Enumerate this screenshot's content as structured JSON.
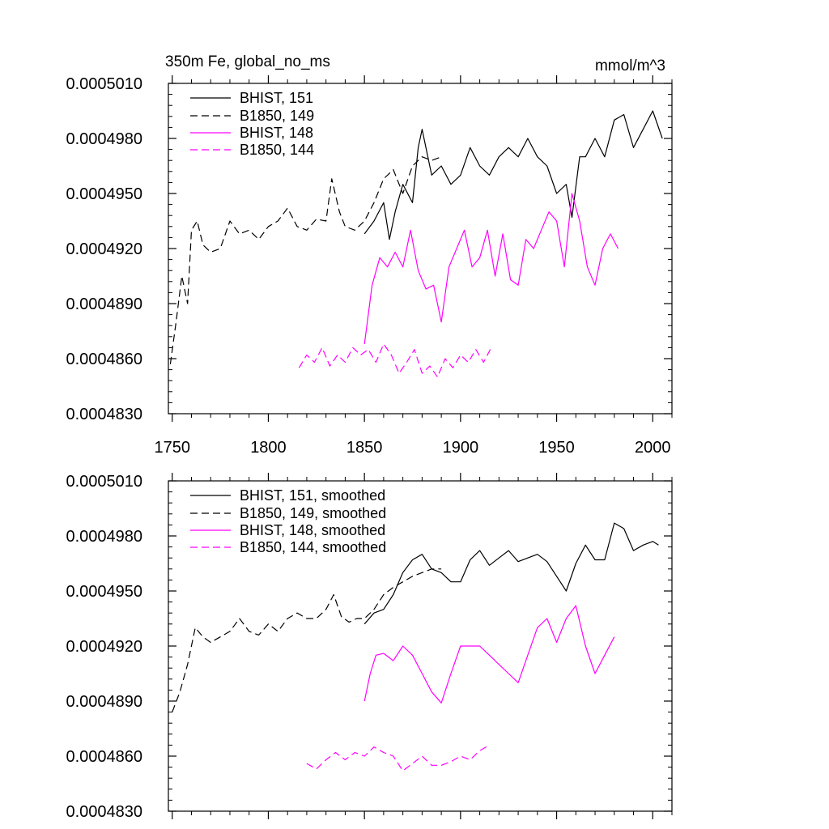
{
  "chart_data": [
    {
      "type": "line",
      "title_left": "350m Fe, global_no_ms",
      "title_right": "mmol/m^3",
      "xlim": [
        1748,
        2010
      ],
      "ylim": [
        0.000483,
        0.000501
      ],
      "ytick_labels": [
        "0.0005010",
        "0.0004980",
        "0.0004950",
        "0.0004920",
        "0.0004890",
        "0.0004860",
        "0.0004830"
      ],
      "ytick_values": [
        0.000501,
        0.000498,
        0.000495,
        0.000492,
        0.000489,
        0.000486,
        0.000483
      ],
      "xtick_labels": [
        "1750",
        "1800",
        "1850",
        "1900",
        "1950",
        "2000"
      ],
      "xtick_values": [
        1750,
        1800,
        1850,
        1900,
        1950,
        2000
      ],
      "grid": false,
      "legend_position": "top-left",
      "series": [
        {
          "name": "BHIST, 151",
          "color": "#000000",
          "dash": "solid",
          "x": [
            1850,
            1855,
            1860,
            1863,
            1866,
            1870,
            1875,
            1878,
            1880,
            1885,
            1890,
            1895,
            1900,
            1905,
            1910,
            1915,
            1920,
            1925,
            1930,
            1935,
            1940,
            1945,
            1950,
            1955,
            1958,
            1962,
            1965,
            1970,
            1975,
            1980,
            1985,
            1990,
            1995,
            2000,
            2005
          ],
          "y": [
            0.0004928,
            0.0004935,
            0.0004945,
            0.0004925,
            0.000494,
            0.0004955,
            0.0004945,
            0.0004975,
            0.0004985,
            0.000496,
            0.0004965,
            0.0004955,
            0.000496,
            0.0004975,
            0.0004965,
            0.000496,
            0.000497,
            0.0004975,
            0.000497,
            0.000498,
            0.000497,
            0.0004965,
            0.000495,
            0.0004955,
            0.0004937,
            0.000497,
            0.000497,
            0.000498,
            0.000497,
            0.000499,
            0.0004993,
            0.0004975,
            0.0004985,
            0.0004995,
            0.000498
          ]
        },
        {
          "name": "B1850, 149",
          "color": "#000000",
          "dash": "dashed",
          "x": [
            1749,
            1752,
            1755,
            1758,
            1760,
            1763,
            1766,
            1770,
            1775,
            1780,
            1785,
            1790,
            1795,
            1800,
            1805,
            1810,
            1815,
            1820,
            1825,
            1830,
            1833,
            1837,
            1840,
            1845,
            1850,
            1855,
            1860,
            1865,
            1870,
            1875,
            1880,
            1885,
            1890
          ],
          "y": [
            0.0004857,
            0.000488,
            0.0004905,
            0.000489,
            0.000493,
            0.0004935,
            0.0004922,
            0.0004918,
            0.000492,
            0.0004935,
            0.0004928,
            0.000493,
            0.0004925,
            0.0004932,
            0.0004935,
            0.0004942,
            0.0004932,
            0.000493,
            0.0004936,
            0.0004935,
            0.0004958,
            0.000494,
            0.0004932,
            0.000493,
            0.0004935,
            0.0004945,
            0.0004958,
            0.0004963,
            0.000495,
            0.0004965,
            0.000497,
            0.0004968,
            0.000497
          ]
        },
        {
          "name": "BHIST, 148",
          "color": "#ff00ff",
          "dash": "solid",
          "x": [
            1850,
            1854,
            1858,
            1862,
            1866,
            1870,
            1874,
            1878,
            1882,
            1886,
            1890,
            1894,
            1898,
            1902,
            1906,
            1910,
            1914,
            1918,
            1922,
            1926,
            1930,
            1934,
            1938,
            1942,
            1946,
            1950,
            1954,
            1958,
            1962,
            1966,
            1970,
            1974,
            1978,
            1982
          ],
          "y": [
            0.0004868,
            0.00049,
            0.0004915,
            0.000491,
            0.0004918,
            0.000491,
            0.000493,
            0.0004908,
            0.0004898,
            0.00049,
            0.000488,
            0.000491,
            0.000492,
            0.000493,
            0.000491,
            0.0004915,
            0.000493,
            0.0004905,
            0.0004928,
            0.0004903,
            0.00049,
            0.0004925,
            0.000492,
            0.000493,
            0.000494,
            0.0004935,
            0.000491,
            0.000495,
            0.0004935,
            0.000491,
            0.00049,
            0.000492,
            0.0004928,
            0.000492
          ]
        },
        {
          "name": "B1850, 144",
          "color": "#ff00ff",
          "dash": "dashed",
          "x": [
            1816,
            1820,
            1824,
            1828,
            1832,
            1836,
            1840,
            1844,
            1848,
            1852,
            1856,
            1860,
            1864,
            1868,
            1872,
            1876,
            1880,
            1884,
            1888,
            1892,
            1896,
            1900,
            1904,
            1908,
            1912,
            1916
          ],
          "y": [
            0.0004855,
            0.0004862,
            0.0004858,
            0.0004866,
            0.0004856,
            0.0004862,
            0.0004858,
            0.0004866,
            0.0004862,
            0.0004865,
            0.0004858,
            0.0004868,
            0.0004862,
            0.0004852,
            0.0004858,
            0.0004865,
            0.0004852,
            0.0004856,
            0.000485,
            0.000486,
            0.0004855,
            0.0004862,
            0.0004858,
            0.0004865,
            0.0004858,
            0.0004866
          ]
        }
      ]
    },
    {
      "type": "line",
      "xlim": [
        1748,
        2010
      ],
      "ylim": [
        0.000483,
        0.000501
      ],
      "ytick_labels": [
        "0.0005010",
        "0.0004980",
        "0.0004950",
        "0.0004920",
        "0.0004890",
        "0.0004860",
        "0.0004830"
      ],
      "ytick_values": [
        0.000501,
        0.000498,
        0.000495,
        0.000492,
        0.000489,
        0.000486,
        0.000483
      ],
      "xtick_values": [
        1750,
        1800,
        1850,
        1900,
        1950,
        2000
      ],
      "grid": false,
      "legend_position": "top-left",
      "series": [
        {
          "name": "BHIST, 151, smoothed",
          "color": "#000000",
          "dash": "solid",
          "x": [
            1850,
            1855,
            1860,
            1865,
            1870,
            1875,
            1880,
            1885,
            1890,
            1895,
            1900,
            1905,
            1910,
            1915,
            1920,
            1925,
            1930,
            1935,
            1940,
            1945,
            1950,
            1955,
            1960,
            1965,
            1970,
            1975,
            1980,
            1985,
            1990,
            1995,
            2000,
            2003
          ],
          "y": [
            0.0004932,
            0.0004938,
            0.000494,
            0.0004948,
            0.000496,
            0.0004967,
            0.000497,
            0.0004962,
            0.000496,
            0.0004955,
            0.0004955,
            0.0004967,
            0.0004972,
            0.0004964,
            0.0004968,
            0.0004972,
            0.0004966,
            0.0004968,
            0.000497,
            0.0004966,
            0.0004958,
            0.000495,
            0.0004965,
            0.0004975,
            0.0004967,
            0.0004967,
            0.0004987,
            0.0004984,
            0.0004972,
            0.0004975,
            0.0004977,
            0.0004975
          ]
        },
        {
          "name": "B1850, 149, smoothed",
          "color": "#000000",
          "dash": "dashed",
          "x": [
            1750,
            1754,
            1758,
            1762,
            1766,
            1770,
            1775,
            1780,
            1785,
            1790,
            1795,
            1800,
            1805,
            1810,
            1815,
            1820,
            1825,
            1830,
            1834,
            1838,
            1842,
            1846,
            1850,
            1855,
            1860,
            1865,
            1870,
            1875,
            1880,
            1885,
            1890
          ],
          "y": [
            0.0004884,
            0.0004895,
            0.000491,
            0.000493,
            0.0004925,
            0.0004922,
            0.0004925,
            0.0004928,
            0.0004935,
            0.0004928,
            0.0004926,
            0.0004932,
            0.0004928,
            0.0004935,
            0.0004938,
            0.0004935,
            0.0004935,
            0.000494,
            0.0004948,
            0.0004936,
            0.0004933,
            0.0004935,
            0.0004935,
            0.000494,
            0.0004948,
            0.0004952,
            0.0004955,
            0.0004958,
            0.000496,
            0.0004962,
            0.0004962
          ]
        },
        {
          "name": "BHIST, 148, smoothed",
          "color": "#ff00ff",
          "dash": "solid",
          "x": [
            1850,
            1853,
            1856,
            1860,
            1865,
            1870,
            1875,
            1880,
            1885,
            1890,
            1895,
            1900,
            1905,
            1910,
            1915,
            1920,
            1925,
            1930,
            1935,
            1940,
            1945,
            1950,
            1955,
            1960,
            1965,
            1970,
            1975,
            1980
          ],
          "y": [
            0.000489,
            0.0004905,
            0.0004915,
            0.0004916,
            0.0004912,
            0.000492,
            0.0004915,
            0.0004905,
            0.0004895,
            0.0004889,
            0.0004905,
            0.000492,
            0.000492,
            0.000492,
            0.0004915,
            0.000491,
            0.0004905,
            0.00049,
            0.0004915,
            0.000493,
            0.0004935,
            0.0004922,
            0.0004935,
            0.0004942,
            0.000492,
            0.0004905,
            0.0004915,
            0.0004925
          ]
        },
        {
          "name": "B1850, 144, smoothed",
          "color": "#ff00ff",
          "dash": "dashed",
          "x": [
            1820,
            1825,
            1830,
            1835,
            1840,
            1845,
            1850,
            1855,
            1860,
            1865,
            1870,
            1875,
            1880,
            1885,
            1890,
            1895,
            1900,
            1905,
            1910,
            1915
          ],
          "y": [
            0.0004856,
            0.0004853,
            0.0004858,
            0.0004862,
            0.0004858,
            0.0004862,
            0.000486,
            0.0004865,
            0.0004862,
            0.000486,
            0.0004852,
            0.0004856,
            0.000486,
            0.0004855,
            0.0004855,
            0.0004857,
            0.000486,
            0.0004858,
            0.0004863,
            0.0004866
          ]
        }
      ]
    }
  ]
}
